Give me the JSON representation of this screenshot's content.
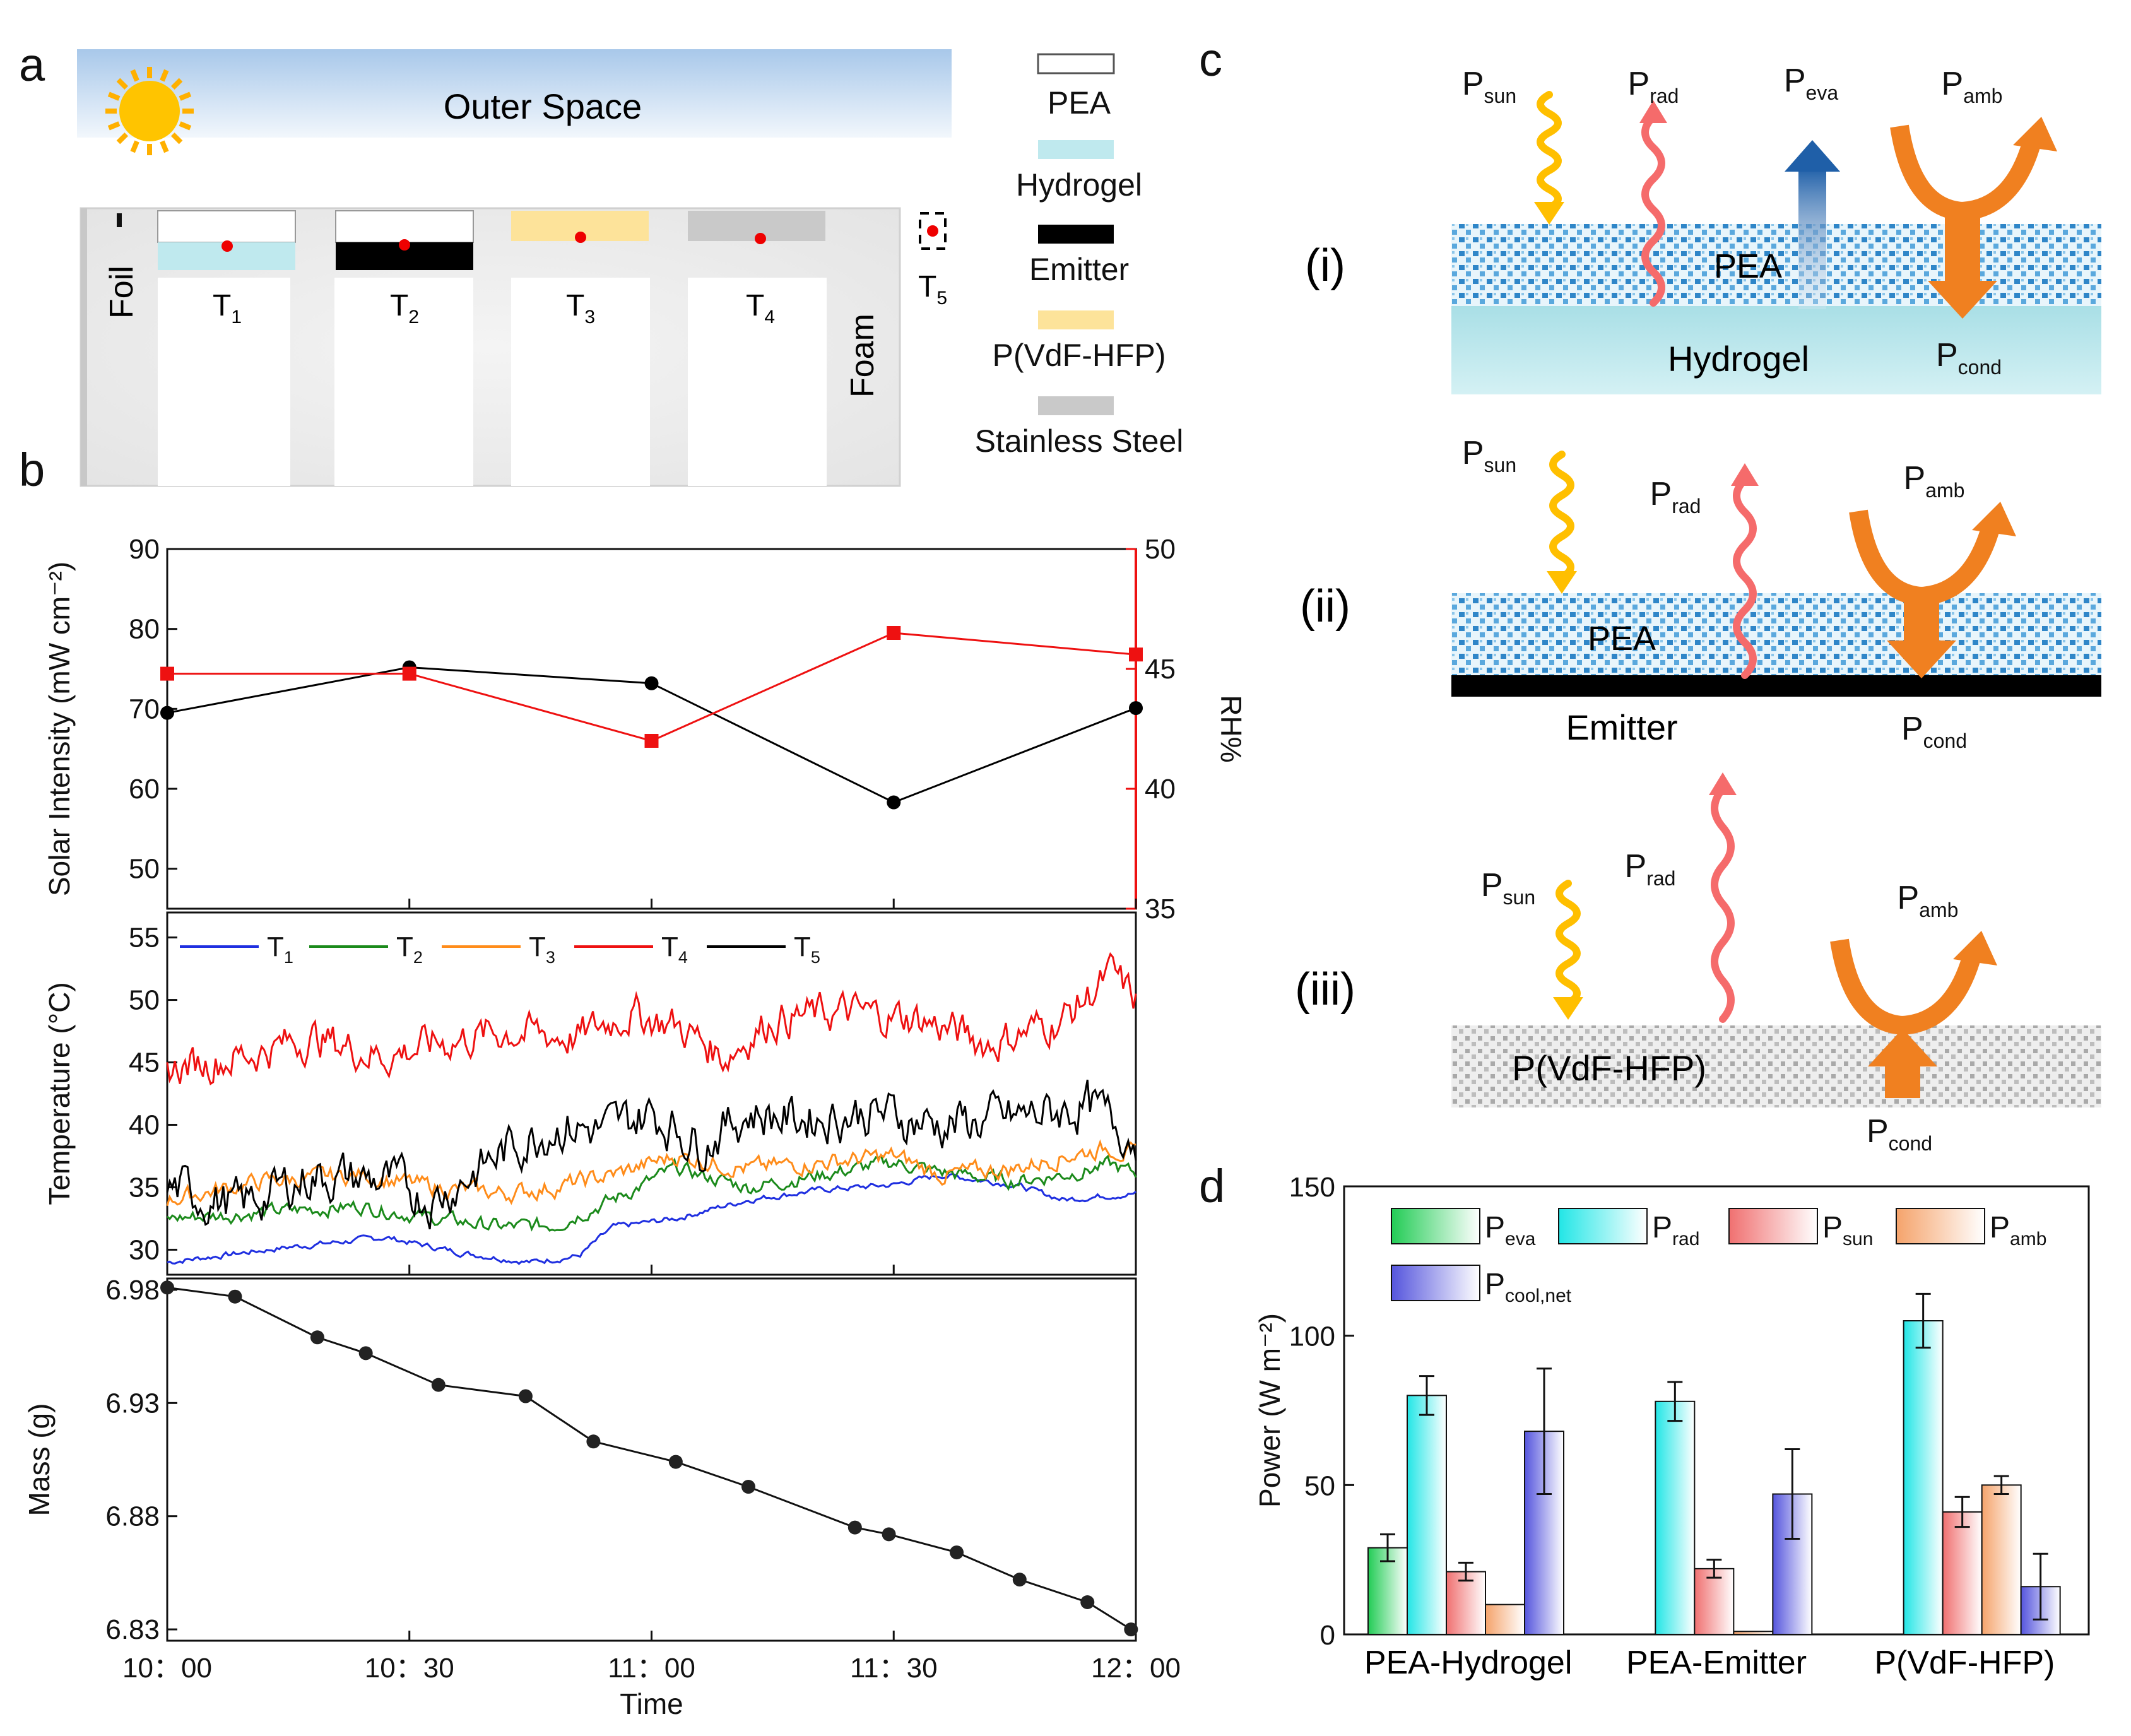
{
  "panels": {
    "a": "a",
    "b": "b",
    "c": "c",
    "d": "d"
  },
  "colors": {
    "hydrogel": "#bfe9ee",
    "emitter": "#000000",
    "pvdf": "#fde39a",
    "steel": "#c9c9c9",
    "t1": "#1f2fe0",
    "t2": "#1b8a1b",
    "t3": "#ff8c1a",
    "t4": "#ee1111",
    "t5": "#000000",
    "rh": "#ee1111",
    "solar": "#000000",
    "eva": "#22cc55",
    "rad": "#22e6e6",
    "sun": "#f07070",
    "amb": "#f5a36b",
    "cool": "#5555dd"
  },
  "schematic_a": {
    "outer_space": "Outer Space",
    "foil": "Foil",
    "foam": "Foam",
    "sensors": [
      {
        "base": "T",
        "sub": "1"
      },
      {
        "base": "T",
        "sub": "2"
      },
      {
        "base": "T",
        "sub": "3"
      },
      {
        "base": "T",
        "sub": "4"
      },
      {
        "base": "T",
        "sub": "5"
      }
    ],
    "legend": [
      "PEA",
      "Hydrogel",
      "Emitter",
      "P(VdF-HFP)",
      "Stainless Steel"
    ]
  },
  "schematic_c": {
    "rows": [
      {
        "roman": "(i)",
        "layer1": "PEA",
        "layer2": "Hydrogel"
      },
      {
        "roman": "(ii)",
        "layer1": "PEA",
        "layer2": "Emitter"
      },
      {
        "roman": "(iii)",
        "layer1": "P(VdF-HFP)",
        "layer2": ""
      }
    ],
    "labels": {
      "p": "P",
      "sun": "sun",
      "rad": "rad",
      "eva": "eva",
      "amb": "amb",
      "cond": "cond"
    }
  },
  "chart_data": [
    {
      "id": "b-top",
      "type": "line",
      "title": "",
      "xlabel": "",
      "ylabel": "Solar Intensity (mW cm⁻²)",
      "ylabel_right": "RH%",
      "ylim": [
        45,
        90
      ],
      "ylim_right": [
        35,
        50
      ],
      "yticks": [
        50,
        60,
        70,
        80,
        90
      ],
      "yticks_right": [
        35,
        40,
        45,
        50
      ],
      "series": [
        {
          "name": "Solar Intensity",
          "axis": "left",
          "x": [
            10.0,
            10.5,
            11.0,
            11.5,
            12.0
          ],
          "values": [
            69.5,
            75.2,
            73.2,
            58.3,
            70.1
          ]
        },
        {
          "name": "RH",
          "axis": "right",
          "x": [
            10.0,
            10.5,
            11.0,
            11.5,
            12.0
          ],
          "values": [
            44.8,
            44.8,
            42.0,
            46.5,
            45.6
          ]
        }
      ]
    },
    {
      "id": "b-mid",
      "type": "line",
      "xlabel": "",
      "ylabel": "Temperature (°C)",
      "ylim": [
        28,
        57
      ],
      "yticks": [
        30,
        35,
        40,
        45,
        50,
        55
      ],
      "legend": [
        {
          "base": "T",
          "sub": "1"
        },
        {
          "base": "T",
          "sub": "2"
        },
        {
          "base": "T",
          "sub": "3"
        },
        {
          "base": "T",
          "sub": "4"
        },
        {
          "base": "T",
          "sub": "5"
        }
      ],
      "series": [
        {
          "name": "T1",
          "x": [
            10.0,
            10.25,
            10.45,
            10.6,
            10.75,
            10.85,
            10.92,
            11.05,
            11.2,
            11.35,
            11.5,
            11.6,
            11.75,
            11.85,
            11.93,
            12.0
          ],
          "values": [
            29.0,
            30.2,
            31.0,
            29.8,
            29.0,
            29.5,
            31.8,
            32.5,
            34.0,
            34.8,
            35.2,
            36.0,
            35.2,
            34.0,
            34.3,
            34.5
          ],
          "noise": 0.2
        },
        {
          "name": "T2",
          "x": [
            10.0,
            10.2,
            10.4,
            10.55,
            10.7,
            10.8,
            10.92,
            11.05,
            11.2,
            11.35,
            11.5,
            11.6,
            11.75,
            11.85,
            11.95,
            12.0
          ],
          "values": [
            32.5,
            33.0,
            33.5,
            32.5,
            31.8,
            32.0,
            34.0,
            36.5,
            35.0,
            36.0,
            37.0,
            36.2,
            35.5,
            36.0,
            36.8,
            36.0
          ],
          "noise": 0.5
        },
        {
          "name": "T3",
          "x": [
            10.0,
            10.2,
            10.4,
            10.55,
            10.7,
            10.8,
            10.92,
            11.05,
            11.2,
            11.35,
            11.5,
            11.6,
            11.75,
            11.85,
            11.95,
            12.0
          ],
          "values": [
            34.0,
            35.5,
            36.0,
            35.0,
            34.5,
            35.0,
            36.0,
            37.5,
            36.5,
            37.0,
            37.5,
            36.0,
            36.5,
            37.5,
            38.2,
            37.5
          ],
          "noise": 0.6
        },
        {
          "name": "T4",
          "x": [
            10.0,
            10.15,
            10.3,
            10.45,
            10.55,
            10.7,
            10.85,
            10.95,
            11.05,
            11.15,
            11.25,
            11.4,
            11.55,
            11.7,
            11.85,
            11.95,
            12.0
          ],
          "values": [
            44.5,
            45.5,
            47.0,
            45.5,
            46.5,
            47.5,
            47.0,
            49.0,
            48.0,
            45.5,
            48.5,
            49.0,
            48.5,
            46.5,
            48.5,
            52.0,
            50.0
          ],
          "noise": 1.3
        },
        {
          "name": "T5",
          "x": [
            10.0,
            10.15,
            10.3,
            10.45,
            10.55,
            10.7,
            10.8,
            10.9,
            11.0,
            11.1,
            11.2,
            11.3,
            11.45,
            11.6,
            11.75,
            11.9,
            12.0
          ],
          "values": [
            35.0,
            33.5,
            36.0,
            35.5,
            34.0,
            38.0,
            40.0,
            39.5,
            41.0,
            38.5,
            41.0,
            40.5,
            41.0,
            40.0,
            40.5,
            41.5,
            39.0
          ],
          "noise": 1.6
        }
      ]
    },
    {
      "id": "b-bottom",
      "type": "line",
      "xlabel": "Time",
      "ylabel": "Mass (g)",
      "ylim": [
        6.825,
        6.985
      ],
      "yticks": [
        "6.98",
        "6.93",
        "6.88",
        "6.83"
      ],
      "xticks": [
        "10：00",
        "10：30",
        "11：00",
        "11：30",
        "12：00"
      ],
      "xtick_values": [
        10.0,
        10.5,
        11.0,
        11.5,
        12.0
      ],
      "series": [
        {
          "name": "Mass",
          "x": [
            10.0,
            10.14,
            10.31,
            10.41,
            10.56,
            10.74,
            10.88,
            11.05,
            11.2,
            11.42,
            11.49,
            11.63,
            11.76,
            11.9,
            11.99
          ],
          "values": [
            6.981,
            6.977,
            6.959,
            6.952,
            6.938,
            6.933,
            6.913,
            6.904,
            6.893,
            6.875,
            6.872,
            6.864,
            6.852,
            6.842,
            6.83
          ]
        }
      ]
    },
    {
      "id": "d",
      "type": "bar",
      "ylabel": "Power (W m⁻²)",
      "ylim": [
        0,
        150
      ],
      "yticks": [
        0,
        50,
        100,
        150
      ],
      "categories": [
        "PEA-Hydrogel",
        "PEA-Emitter",
        "P(VdF-HFP)"
      ],
      "legend": [
        {
          "key": "eva",
          "sub": "eva"
        },
        {
          "key": "rad",
          "sub": "rad"
        },
        {
          "key": "sun",
          "sub": "sun"
        },
        {
          "key": "amb",
          "sub": "amb"
        },
        {
          "key": "cool",
          "sub": "cool,net"
        }
      ],
      "series": [
        {
          "name": "P_eva",
          "key": "eva",
          "values": [
            29,
            0,
            0
          ],
          "errors": [
            4.5,
            0,
            0
          ]
        },
        {
          "name": "P_rad",
          "key": "rad",
          "values": [
            80,
            78,
            105
          ],
          "errors": [
            6.5,
            6.5,
            9
          ]
        },
        {
          "name": "P_sun",
          "key": "sun",
          "values": [
            21,
            22,
            41
          ],
          "errors": [
            3,
            3,
            5
          ]
        },
        {
          "name": "P_amb",
          "key": "amb",
          "values": [
            10,
            1,
            50
          ],
          "errors": [
            0,
            0,
            3
          ]
        },
        {
          "name": "P_cool,net",
          "key": "cool",
          "values": [
            68,
            47,
            16
          ],
          "errors": [
            21,
            15,
            11
          ]
        }
      ]
    }
  ]
}
